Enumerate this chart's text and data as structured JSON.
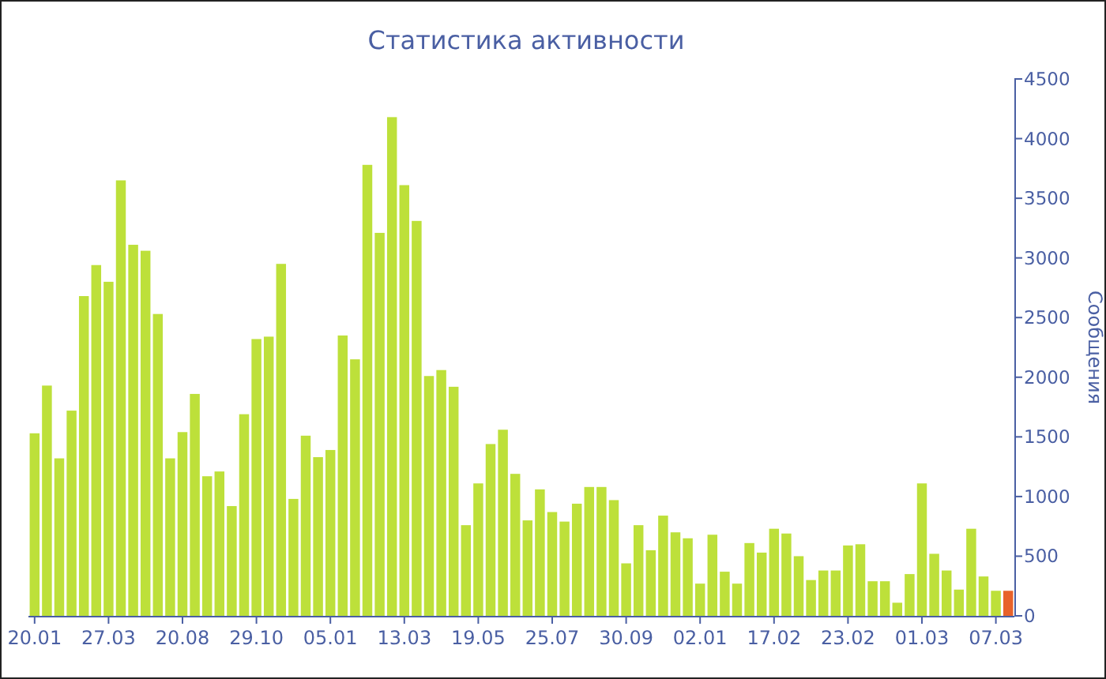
{
  "chart_data": {
    "type": "bar",
    "title": "Статистика активности",
    "ylabel": "Сообщения",
    "categories": [
      "20.01",
      null,
      null,
      null,
      null,
      null,
      "27.03",
      null,
      null,
      null,
      null,
      null,
      "20.08",
      null,
      null,
      null,
      null,
      null,
      "29.10",
      null,
      null,
      null,
      null,
      null,
      "05.01",
      null,
      null,
      null,
      null,
      null,
      "13.03",
      null,
      null,
      null,
      null,
      null,
      "19.05",
      null,
      null,
      null,
      null,
      null,
      "25.07",
      null,
      null,
      null,
      null,
      null,
      "30.09",
      null,
      null,
      null,
      null,
      null,
      "02.01",
      null,
      null,
      null,
      null,
      null,
      "17.02",
      null,
      null,
      null,
      null,
      null,
      "23.02",
      null,
      null,
      null,
      null,
      null,
      "01.03",
      null,
      null,
      null,
      null,
      null,
      "07.03",
      null
    ],
    "values": [
      1530,
      1930,
      1320,
      1720,
      2680,
      2940,
      2800,
      3650,
      3110,
      3060,
      2530,
      1320,
      1540,
      1860,
      1170,
      1210,
      920,
      1690,
      2320,
      2340,
      2950,
      980,
      1510,
      1330,
      1390,
      2350,
      2150,
      3780,
      3210,
      4180,
      3610,
      3310,
      2010,
      2060,
      1920,
      760,
      1110,
      1440,
      1560,
      1190,
      800,
      1060,
      870,
      790,
      940,
      1080,
      1080,
      970,
      440,
      760,
      550,
      840,
      700,
      650,
      270,
      680,
      370,
      270,
      610,
      530,
      730,
      690,
      500,
      300,
      380,
      380,
      590,
      600,
      290,
      290,
      110,
      350,
      1110,
      520,
      380,
      220,
      730,
      330,
      210,
      210
    ],
    "colors": [
      "#bde03a",
      "#bde03a",
      "#bde03a",
      "#bde03a",
      "#bde03a",
      "#bde03a",
      "#bde03a",
      "#bde03a",
      "#bde03a",
      "#bde03a",
      "#bde03a",
      "#bde03a",
      "#bde03a",
      "#bde03a",
      "#bde03a",
      "#bde03a",
      "#bde03a",
      "#bde03a",
      "#bde03a",
      "#bde03a",
      "#bde03a",
      "#bde03a",
      "#bde03a",
      "#bde03a",
      "#bde03a",
      "#bde03a",
      "#bde03a",
      "#bde03a",
      "#bde03a",
      "#bde03a",
      "#bde03a",
      "#bde03a",
      "#bde03a",
      "#bde03a",
      "#bde03a",
      "#bde03a",
      "#bde03a",
      "#bde03a",
      "#bde03a",
      "#bde03a",
      "#bde03a",
      "#bde03a",
      "#bde03a",
      "#bde03a",
      "#bde03a",
      "#bde03a",
      "#bde03a",
      "#bde03a",
      "#bde03a",
      "#bde03a",
      "#bde03a",
      "#bde03a",
      "#bde03a",
      "#bde03a",
      "#bde03a",
      "#bde03a",
      "#bde03a",
      "#bde03a",
      "#bde03a",
      "#bde03a",
      "#bde03a",
      "#bde03a",
      "#bde03a",
      "#bde03a",
      "#bde03a",
      "#bde03a",
      "#bde03a",
      "#bde03a",
      "#bde03a",
      "#bde03a",
      "#bde03a",
      "#bde03a",
      "#bde03a",
      "#bde03a",
      "#bde03a",
      "#bde03a",
      "#bde03a",
      "#bde03a",
      "#bde03a",
      "#e8622a"
    ],
    "ylim": [
      0,
      4500
    ],
    "yticks": [
      0,
      500,
      1000,
      1500,
      2000,
      2500,
      3000,
      3500,
      4000,
      4500
    ]
  }
}
